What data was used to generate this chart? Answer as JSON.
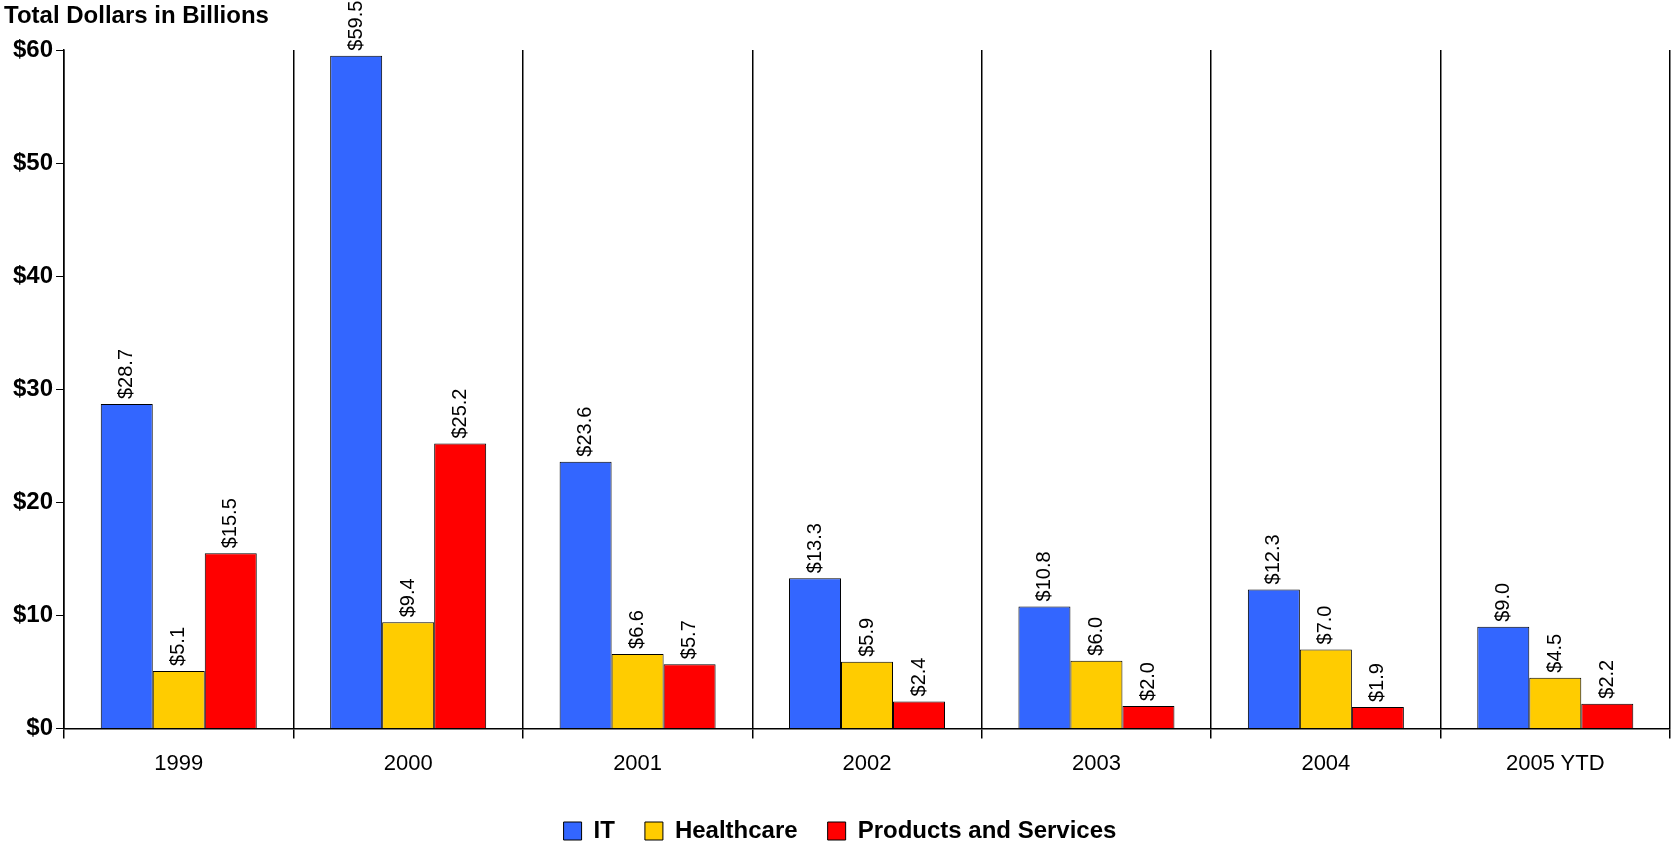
{
  "chart_data": {
    "type": "bar",
    "ylabel": "Total Dollars in Billions",
    "categories": [
      "1999",
      "2000",
      "2001",
      "2002",
      "2003",
      "2004",
      "2005 YTD"
    ],
    "series": [
      {
        "name": "IT",
        "color": "#3366ff",
        "values": [
          28.7,
          59.5,
          23.6,
          13.3,
          10.8,
          12.3,
          9.0
        ],
        "value_labels": [
          "$28.7",
          "$59.5",
          "$23.6",
          "$13.3",
          "$10.8",
          "$12.3",
          "$9.0"
        ]
      },
      {
        "name": "Healthcare",
        "color": "#ffcc00",
        "values": [
          5.1,
          9.4,
          6.6,
          5.9,
          6.0,
          7.0,
          4.5
        ],
        "value_labels": [
          "$5.1",
          "$9.4",
          "$6.6",
          "$5.9",
          "$6.0",
          "$7.0",
          "$4.5"
        ]
      },
      {
        "name": "Products and Services",
        "color": "#ff0000",
        "values": [
          15.5,
          25.2,
          5.7,
          2.4,
          2.0,
          1.9,
          2.2
        ],
        "value_labels": [
          "$15.5",
          "$25.2",
          "$5.7",
          "$2.4",
          "$2.0",
          "$1.9",
          "$2.2"
        ]
      }
    ],
    "ylim": [
      0,
      60
    ],
    "yticks": [
      {
        "value": 0,
        "label": "$0"
      },
      {
        "value": 10,
        "label": "$10"
      },
      {
        "value": 20,
        "label": "$20"
      },
      {
        "value": 30,
        "label": "$30"
      },
      {
        "value": 40,
        "label": "$40"
      },
      {
        "value": 50,
        "label": "$50"
      },
      {
        "value": 60,
        "label": "$60"
      }
    ],
    "grid": "x",
    "legend": "bottom"
  }
}
